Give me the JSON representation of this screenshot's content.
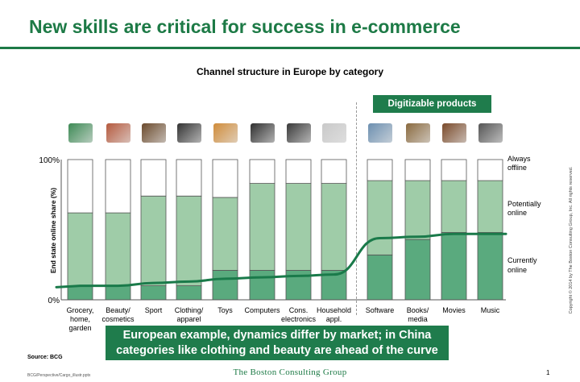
{
  "slide_title": "New skills are critical for success in e-commerce",
  "badge": "Digitizable products",
  "callout": {
    "line1": "European example, dynamics differ by market; in China",
    "line2": "categories like clothing and beauty are ahead of the curve"
  },
  "source": "Source: BCG",
  "file_path": "BCG/Perspective/Cargo_illustr.pptx",
  "footer_brand": "The Boston Consulting Group",
  "page_number": "1",
  "copyright": "Copyright © 2014 by The Boston Consulting Group, Inc. All rights reserved.",
  "colors": {
    "brand_green": "#1d7a46",
    "currently_online": "#5aaa7e",
    "potentially_online": "#9fcca8",
    "always_offline": "#ffffff"
  },
  "icons": [
    "watering-can-icon",
    "cosmetics-icon",
    "sport-icon",
    "clothing-icon",
    "toys-icon",
    "computer-icon",
    "phone-icon",
    "appliance-icon",
    "software-icon",
    "books-icon",
    "movies-icon",
    "music-icon"
  ],
  "chart_data": {
    "type": "bar",
    "stacked": true,
    "title": "Channel structure in Europe by category",
    "ylabel": "End state online share (%)",
    "ylim": [
      0,
      100
    ],
    "yticks": [
      "0%",
      "100%"
    ],
    "categories": [
      [
        "Grocery,",
        "home,",
        "garden"
      ],
      [
        "Beauty/",
        "cosmetics"
      ],
      [
        "Sport"
      ],
      [
        "Clothing/",
        "apparel"
      ],
      [
        "Toys"
      ],
      [
        "Computers"
      ],
      [
        "Cons.",
        "electronics"
      ],
      [
        "Household",
        "appl."
      ],
      [
        "Software"
      ],
      [
        "Books/",
        "media"
      ],
      [
        "Movies"
      ],
      [
        "Music"
      ]
    ],
    "series": [
      {
        "name": "Currently online",
        "values": [
          10,
          10,
          10,
          10,
          21,
          21,
          21,
          21,
          32,
          43,
          48,
          48
        ]
      },
      {
        "name": "Potentially online",
        "values": [
          52,
          52,
          64,
          64,
          52,
          62,
          62,
          62,
          53,
          42,
          37,
          37
        ]
      },
      {
        "name": "Always offline",
        "values": [
          38,
          38,
          26,
          26,
          27,
          17,
          17,
          17,
          15,
          15,
          15,
          15
        ]
      }
    ],
    "legend_labels": [
      [
        "Always",
        "offline"
      ],
      [
        "Potentially",
        "online"
      ],
      [
        "Currently",
        "online"
      ]
    ],
    "trend_line": [
      10,
      10,
      12,
      13,
      15,
      16,
      17,
      18,
      44,
      45,
      47,
      47
    ],
    "digitizable_from_index": 8,
    "grid": false
  }
}
